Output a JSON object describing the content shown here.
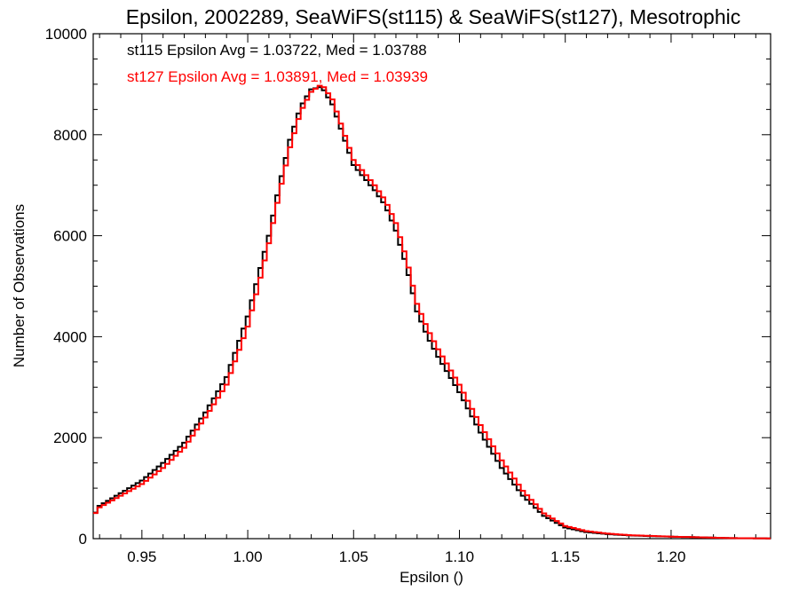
{
  "chart_data": {
    "type": "line",
    "style": "histogram-step",
    "title": "Epsilon, 2002289, SeaWiFS(st115) & SeaWiFS(st127), Mesotrophic",
    "xlabel": "Epsilon ()",
    "ylabel": "Number of Observations",
    "xlim": [
      0.927,
      1.247
    ],
    "ylim": [
      0,
      10000
    ],
    "x_ticks": [
      0.95,
      1.0,
      1.05,
      1.1,
      1.15,
      1.2
    ],
    "x_tick_labels": [
      "0.95",
      "1.00",
      "1.05",
      "1.10",
      "1.15",
      "1.20"
    ],
    "y_ticks": [
      0,
      2000,
      4000,
      6000,
      8000,
      10000
    ],
    "y_tick_labels": [
      "0",
      "2000",
      "4000",
      "6000",
      "8000",
      "10000"
    ],
    "grid": false,
    "annotations": [
      {
        "text": "st115 Epsilon Avg = 1.03722, Med = 1.03788",
        "color": "#000000"
      },
      {
        "text": "st127 Epsilon Avg = 1.03891, Med = 1.03939",
        "color": "#ff0000"
      }
    ],
    "series": [
      {
        "color": "#000000",
        "x": [
          0.927,
          0.93,
          0.94,
          0.95,
          0.96,
          0.97,
          0.98,
          0.99,
          1.0,
          1.005,
          1.01,
          1.015,
          1.02,
          1.025,
          1.03,
          1.035,
          1.04,
          1.045,
          1.05,
          1.055,
          1.06,
          1.065,
          1.07,
          1.075,
          1.08,
          1.085,
          1.09,
          1.1,
          1.11,
          1.12,
          1.13,
          1.14,
          1.15,
          1.16,
          1.17,
          1.18,
          1.19,
          1.2,
          1.21,
          1.22,
          1.23,
          1.247
        ],
        "y": [
          450,
          650,
          900,
          1150,
          1500,
          1900,
          2500,
          3200,
          4400,
          5200,
          6000,
          7000,
          7900,
          8550,
          8900,
          8950,
          8600,
          8000,
          7400,
          7150,
          6900,
          6600,
          6100,
          5400,
          4500,
          4000,
          3600,
          2900,
          2100,
          1400,
          850,
          450,
          220,
          130,
          90,
          65,
          50,
          40,
          30,
          20,
          10,
          5
        ]
      },
      {
        "color": "#ff0000",
        "x": [
          0.927,
          0.93,
          0.94,
          0.95,
          0.96,
          0.97,
          0.98,
          0.99,
          1.0,
          1.005,
          1.01,
          1.015,
          1.02,
          1.025,
          1.03,
          1.035,
          1.04,
          1.045,
          1.05,
          1.055,
          1.06,
          1.065,
          1.07,
          1.075,
          1.08,
          1.085,
          1.09,
          1.1,
          1.11,
          1.12,
          1.13,
          1.14,
          1.15,
          1.16,
          1.17,
          1.18,
          1.19,
          1.2,
          1.21,
          1.22,
          1.23,
          1.247
        ],
        "y": [
          450,
          620,
          850,
          1080,
          1400,
          1800,
          2400,
          3050,
          4200,
          5000,
          5850,
          6850,
          7750,
          8450,
          8850,
          9000,
          8700,
          8100,
          7500,
          7250,
          7000,
          6700,
          6250,
          5550,
          4650,
          4150,
          3750,
          3050,
          2250,
          1550,
          950,
          500,
          250,
          150,
          100,
          70,
          55,
          40,
          30,
          20,
          10,
          5
        ]
      }
    ]
  }
}
